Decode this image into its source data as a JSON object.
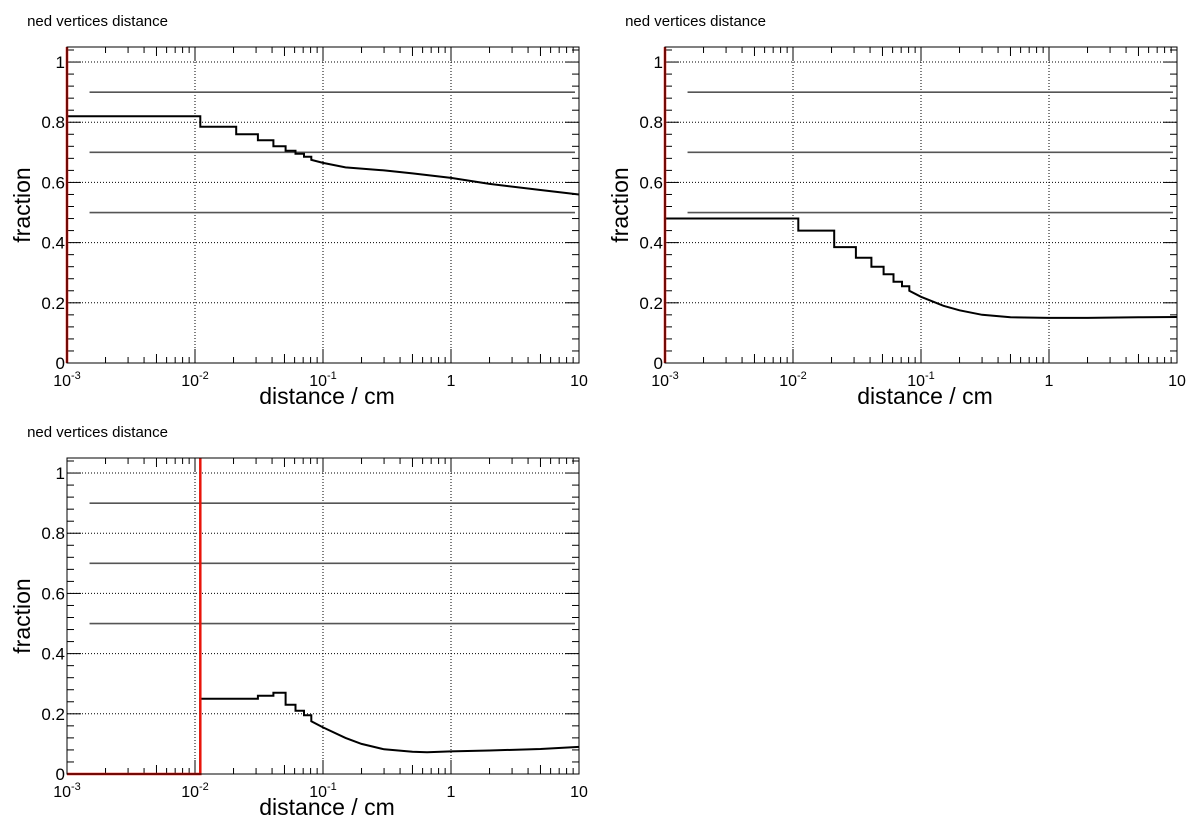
{
  "chart_data": [
    {
      "type": "line",
      "title": "ned vertices distance",
      "xlabel": "distance / cm",
      "ylabel": "fraction",
      "x_scale": "log",
      "xlim": [
        0.001,
        10
      ],
      "ylim": [
        0,
        1.05
      ],
      "grid": true,
      "x_ticks": [
        {
          "value": 0.001,
          "base": "10",
          "exp": "-3"
        },
        {
          "value": 0.01,
          "base": "10",
          "exp": "-2"
        },
        {
          "value": 0.1,
          "base": "10",
          "exp": "-1"
        },
        {
          "value": 1,
          "base": "1",
          "exp": ""
        },
        {
          "value": 10,
          "base": "10",
          "exp": ""
        }
      ],
      "y_ticks": [
        "0",
        "0.2",
        "0.4",
        "0.6",
        "0.8",
        "1"
      ],
      "reference_lines": [
        0.9,
        0.7,
        0.5
      ],
      "reference_line_xstart": 0.0015,
      "red_marker": {
        "x": [
          0.001,
          0.001
        ],
        "y": [
          0,
          1.05
        ]
      },
      "series": [
        {
          "x": [
            0.001,
            0.011,
            0.011,
            0.021,
            0.021,
            0.031,
            0.031,
            0.041,
            0.041,
            0.051,
            0.051,
            0.061,
            0.061,
            0.071,
            0.071,
            0.081,
            0.081,
            0.1,
            0.15,
            0.3,
            0.5,
            1,
            2,
            5,
            10
          ],
          "y": [
            0.82,
            0.82,
            0.785,
            0.785,
            0.76,
            0.76,
            0.74,
            0.74,
            0.72,
            0.72,
            0.705,
            0.705,
            0.695,
            0.695,
            0.685,
            0.685,
            0.675,
            0.665,
            0.65,
            0.64,
            0.63,
            0.615,
            0.595,
            0.575,
            0.56
          ]
        }
      ]
    },
    {
      "type": "line",
      "title": "ned vertices distance",
      "xlabel": "distance / cm",
      "ylabel": "fraction",
      "x_scale": "log",
      "xlim": [
        0.001,
        10
      ],
      "ylim": [
        0,
        1.05
      ],
      "grid": true,
      "x_ticks": [
        {
          "value": 0.001,
          "base": "10",
          "exp": "-3"
        },
        {
          "value": 0.01,
          "base": "10",
          "exp": "-2"
        },
        {
          "value": 0.1,
          "base": "10",
          "exp": "-1"
        },
        {
          "value": 1,
          "base": "1",
          "exp": ""
        },
        {
          "value": 10,
          "base": "10",
          "exp": ""
        }
      ],
      "y_ticks": [
        "0",
        "0.2",
        "0.4",
        "0.6",
        "0.8",
        "1"
      ],
      "reference_lines": [
        0.9,
        0.7,
        0.5
      ],
      "reference_line_xstart": 0.0015,
      "red_marker": {
        "x": [
          0.001,
          0.001
        ],
        "y": [
          0,
          1.05
        ]
      },
      "series": [
        {
          "x": [
            0.001,
            0.011,
            0.011,
            0.021,
            0.021,
            0.031,
            0.031,
            0.041,
            0.041,
            0.051,
            0.051,
            0.061,
            0.061,
            0.071,
            0.071,
            0.081,
            0.081,
            0.1,
            0.15,
            0.2,
            0.3,
            0.5,
            1,
            2,
            5,
            10
          ],
          "y": [
            0.48,
            0.48,
            0.44,
            0.44,
            0.385,
            0.385,
            0.35,
            0.35,
            0.32,
            0.32,
            0.295,
            0.295,
            0.27,
            0.27,
            0.255,
            0.255,
            0.24,
            0.22,
            0.19,
            0.175,
            0.16,
            0.152,
            0.15,
            0.15,
            0.152,
            0.153
          ]
        }
      ]
    },
    {
      "type": "line",
      "title": "ned vertices distance",
      "xlabel": "distance / cm",
      "ylabel": "fraction",
      "x_scale": "log",
      "xlim": [
        0.001,
        10
      ],
      "ylim": [
        0,
        1.05
      ],
      "grid": true,
      "x_ticks": [
        {
          "value": 0.001,
          "base": "10",
          "exp": "-3"
        },
        {
          "value": 0.01,
          "base": "10",
          "exp": "-2"
        },
        {
          "value": 0.1,
          "base": "10",
          "exp": "-1"
        },
        {
          "value": 1,
          "base": "1",
          "exp": ""
        },
        {
          "value": 10,
          "base": "10",
          "exp": ""
        }
      ],
      "y_ticks": [
        "0",
        "0.2",
        "0.4",
        "0.6",
        "0.8",
        "1"
      ],
      "reference_lines": [
        0.9,
        0.7,
        0.5
      ],
      "reference_line_xstart": 0.0015,
      "red_marker": {
        "x": [
          0.001,
          0.011,
          0.011
        ],
        "y": [
          0,
          0,
          1.05
        ]
      },
      "series": [
        {
          "x": [
            0.011,
            0.011,
            0.031,
            0.031,
            0.041,
            0.041,
            0.051,
            0.051,
            0.061,
            0.061,
            0.071,
            0.071,
            0.081,
            0.081,
            0.1,
            0.15,
            0.2,
            0.3,
            0.5,
            0.65,
            1,
            2,
            5,
            10
          ],
          "y": [
            0,
            0.25,
            0.25,
            0.26,
            0.26,
            0.27,
            0.27,
            0.23,
            0.23,
            0.21,
            0.21,
            0.195,
            0.195,
            0.175,
            0.155,
            0.12,
            0.1,
            0.082,
            0.074,
            0.072,
            0.075,
            0.078,
            0.083,
            0.09
          ]
        }
      ]
    }
  ]
}
